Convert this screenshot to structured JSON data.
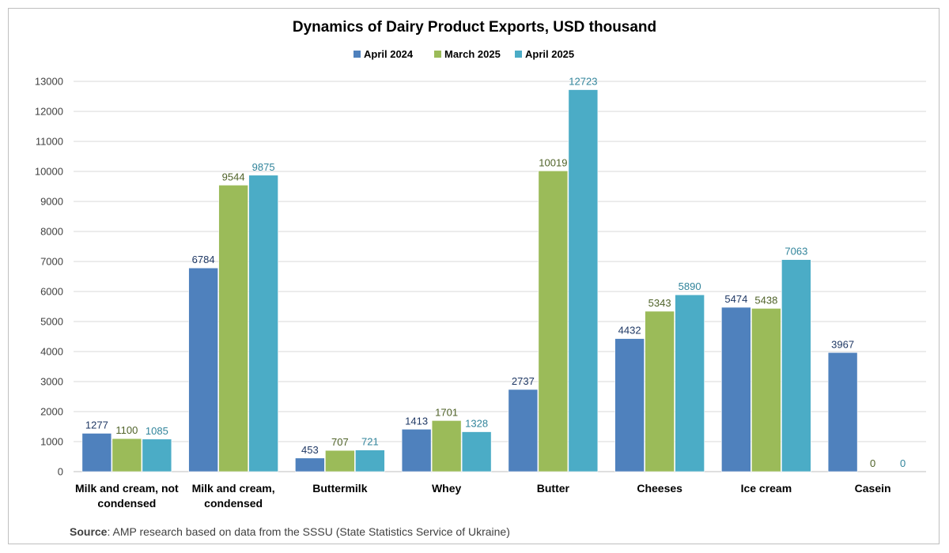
{
  "chart_data": {
    "type": "bar",
    "title": "Dynamics of Dairy Product Exports, USD thousand",
    "categories": [
      [
        "Milk and cream, not",
        "condensed"
      ],
      [
        "Milk and cream,",
        "condensed"
      ],
      [
        "Buttermilk"
      ],
      [
        "Whey"
      ],
      [
        "Butter"
      ],
      [
        "Cheeses"
      ],
      [
        "Ice cream"
      ],
      [
        "Casein"
      ]
    ],
    "series": [
      {
        "name": "April 2024",
        "color": "#4f81bd",
        "label_color": "#1f3864",
        "values": [
          1277,
          6784,
          453,
          1413,
          2737,
          4432,
          5474,
          3967
        ]
      },
      {
        "name": "March 2025",
        "color": "#9bbb59",
        "label_color": "#4f6228",
        "values": [
          1100,
          9544,
          707,
          1701,
          10019,
          5343,
          5438,
          0
        ]
      },
      {
        "name": "April 2025",
        "color": "#4bacc6",
        "label_color": "#31849b",
        "values": [
          1085,
          9875,
          721,
          1328,
          12723,
          5890,
          7063,
          0
        ]
      }
    ],
    "ylim": [
      0,
      13000
    ],
    "ytick_step": 1000,
    "yticks": [
      "0",
      "1000",
      "2000",
      "3000",
      "4000",
      "5000",
      "6000",
      "7000",
      "8000",
      "9000",
      "10000",
      "11000",
      "12000",
      "13000"
    ],
    "xlabel": "",
    "ylabel": "",
    "grid": true,
    "legend_position": "top-center",
    "gridline_color": "#d9d9d9"
  },
  "source": {
    "label": "Source",
    "text": ": AMP research based on data from the SSSU (State Statistics Service of Ukraine)"
  }
}
